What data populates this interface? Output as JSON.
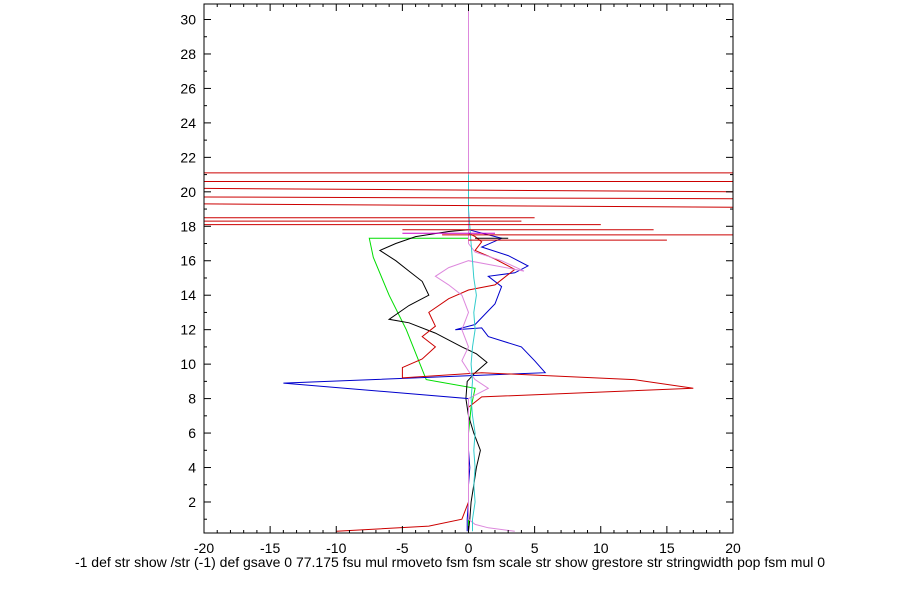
{
  "chart_data": {
    "type": "line",
    "title": "",
    "xlabel": "-1 def str show /str (-1) def gsave 0 77.175 fsu mul rmoveto fsm fsm scale str show grestore str stringwidth pop fsm mul 0",
    "ylabel": "",
    "xlim": [
      -20,
      20
    ],
    "ylim": [
      0.2,
      30.9
    ],
    "xticks": [
      -20,
      -15,
      -10,
      -5,
      0,
      5,
      10,
      15,
      20
    ],
    "xtick_labels": [
      "-20",
      "-15",
      "-10",
      "-5",
      "0",
      "5",
      "10",
      "15",
      "20"
    ],
    "yticks": [
      2,
      4,
      6,
      8,
      10,
      12,
      14,
      16,
      18,
      20,
      22,
      24,
      26,
      28,
      30
    ],
    "ytick_labels": [
      "2",
      "4",
      "6",
      "8",
      "10",
      "12",
      "14",
      "16",
      "18",
      "20",
      "22",
      "24",
      "26",
      "28",
      "30"
    ],
    "grid": false,
    "legend": "none",
    "colors": {
      "green": "#00dd00",
      "black": "#000000",
      "blue": "#0000cc",
      "red": "#cc0000",
      "violet": "#dd88dd",
      "cyan": "#33cccc",
      "magenta": "#cc00cc"
    },
    "series": [
      {
        "color": "green",
        "points": [
          [
            0,
            0.3
          ],
          [
            0,
            2
          ],
          [
            0,
            4
          ],
          [
            0,
            6
          ],
          [
            0.2,
            7.5
          ],
          [
            0.5,
            8.6
          ],
          [
            -3.2,
            9.1
          ],
          [
            -4.7,
            12
          ],
          [
            -6,
            14
          ],
          [
            -7.2,
            16.2
          ],
          [
            -7.5,
            17.3
          ],
          [
            0,
            17.3
          ]
        ]
      },
      {
        "color": "black",
        "points": [
          [
            0,
            0.3
          ],
          [
            0.1,
            1
          ],
          [
            0.2,
            2
          ],
          [
            0.4,
            3
          ],
          [
            0.6,
            4
          ],
          [
            0.9,
            5
          ],
          [
            0.4,
            6
          ],
          [
            0,
            7
          ],
          [
            -0.2,
            8
          ],
          [
            -0.1,
            9
          ],
          [
            0.5,
            9.5
          ],
          [
            1.4,
            10.1
          ],
          [
            0.6,
            10.6
          ],
          [
            -0.5,
            11
          ],
          [
            -2.5,
            11.8
          ],
          [
            -4.5,
            12.4
          ],
          [
            -6,
            12.6
          ],
          [
            -4.5,
            13.4
          ],
          [
            -3,
            14
          ],
          [
            -3.5,
            14.8
          ],
          [
            -4.5,
            15.4
          ],
          [
            -5.5,
            16
          ],
          [
            -6.7,
            16.6
          ],
          [
            -5.5,
            17
          ],
          [
            -4,
            17.4
          ],
          [
            -1.5,
            17.7
          ],
          [
            0,
            17.8
          ]
        ]
      },
      {
        "color": "blue",
        "points": [
          [
            -0.1,
            0.3
          ],
          [
            -0.1,
            1
          ],
          [
            0,
            2
          ],
          [
            0,
            3
          ],
          [
            0.1,
            4
          ],
          [
            0,
            5
          ],
          [
            0,
            6
          ],
          [
            0,
            7
          ],
          [
            0,
            8
          ],
          [
            -14,
            8.9
          ],
          [
            -4,
            9.2
          ],
          [
            -1,
            9.3
          ],
          [
            5.8,
            9.5
          ],
          [
            5,
            10.2
          ],
          [
            4,
            11
          ],
          [
            1.5,
            11.6
          ],
          [
            1,
            12.1
          ],
          [
            -1,
            12
          ],
          [
            0.5,
            12.3
          ],
          [
            2,
            13.5
          ],
          [
            2.5,
            14.5
          ],
          [
            1.5,
            15.1
          ],
          [
            3.5,
            15.3
          ],
          [
            4.5,
            15.7
          ],
          [
            3,
            16.3
          ],
          [
            1,
            16.8
          ],
          [
            2.5,
            17.3
          ],
          [
            0,
            17.8
          ]
        ]
      },
      {
        "color": "red",
        "points": [
          [
            -10,
            0.3
          ],
          [
            -3,
            0.6
          ],
          [
            -0.5,
            1
          ],
          [
            0,
            2
          ],
          [
            0,
            4
          ],
          [
            0,
            6
          ],
          [
            0,
            7.5
          ],
          [
            1,
            8.1
          ],
          [
            17,
            8.6
          ],
          [
            12.5,
            9.1
          ],
          [
            1,
            9.5
          ],
          [
            -5,
            9.2
          ],
          [
            -5,
            9.8
          ],
          [
            -3.5,
            10.3
          ],
          [
            -2.5,
            11
          ],
          [
            -3.5,
            11.6
          ],
          [
            -2.5,
            12.2
          ],
          [
            -3,
            13
          ],
          [
            -1.5,
            13.8
          ],
          [
            0,
            14.3
          ],
          [
            2,
            14.6
          ],
          [
            2.5,
            14.9
          ],
          [
            3.5,
            15.5
          ],
          [
            2,
            16.1
          ],
          [
            0.5,
            16.6
          ],
          [
            1,
            17.1
          ],
          [
            0.5,
            17.4
          ],
          [
            0,
            17.6
          ]
        ]
      },
      {
        "color": "violet",
        "points": [
          [
            3.5,
            0.3
          ],
          [
            1.5,
            0.5
          ],
          [
            0.5,
            0.7
          ],
          [
            0,
            1
          ],
          [
            0,
            2
          ],
          [
            0,
            4
          ],
          [
            0,
            6
          ],
          [
            0,
            8
          ],
          [
            1.5,
            8.6
          ],
          [
            0.5,
            9.1
          ],
          [
            0,
            9.6
          ],
          [
            -0.5,
            10.2
          ],
          [
            0,
            11
          ],
          [
            -0.5,
            12
          ],
          [
            0,
            13
          ],
          [
            -0.5,
            14
          ],
          [
            -1.5,
            14.6
          ],
          [
            -2.5,
            15.1
          ],
          [
            -1.5,
            15.6
          ],
          [
            0,
            16
          ],
          [
            4.2,
            15.4
          ],
          [
            2.5,
            16
          ],
          [
            0.5,
            16.5
          ],
          [
            0,
            17
          ],
          [
            0,
            18
          ],
          [
            0,
            20
          ],
          [
            0,
            22
          ],
          [
            0,
            24
          ],
          [
            0,
            26
          ],
          [
            0,
            28
          ],
          [
            0,
            30.9
          ]
        ]
      },
      {
        "color": "cyan",
        "points": [
          [
            0.3,
            0.3
          ],
          [
            0.3,
            1
          ],
          [
            0.5,
            2
          ],
          [
            0.4,
            3
          ],
          [
            0.5,
            4
          ],
          [
            0.4,
            5
          ],
          [
            0.5,
            6
          ],
          [
            0.3,
            7
          ],
          [
            0.2,
            8
          ],
          [
            0.3,
            9
          ],
          [
            0.2,
            10
          ],
          [
            0.3,
            11
          ],
          [
            0.5,
            12
          ],
          [
            0.4,
            13
          ],
          [
            0.6,
            14
          ],
          [
            0.4,
            15
          ],
          [
            0.3,
            16
          ],
          [
            0.2,
            17
          ],
          [
            0.1,
            18
          ],
          [
            0,
            19
          ],
          [
            0,
            20
          ],
          [
            0,
            21
          ]
        ]
      },
      {
        "color": "red",
        "points": [
          [
            -20,
            30.9
          ],
          [
            -5,
            30.9
          ]
        ]
      },
      {
        "color": "red",
        "points": [
          [
            -20,
            21.1
          ],
          [
            20,
            21.1
          ]
        ]
      },
      {
        "color": "red",
        "points": [
          [
            -20,
            20.6
          ],
          [
            20,
            20.6
          ]
        ]
      },
      {
        "color": "red",
        "points": [
          [
            -20,
            20.2
          ],
          [
            20,
            20
          ]
        ]
      },
      {
        "color": "red",
        "points": [
          [
            -20,
            19.7
          ],
          [
            20,
            19.6
          ]
        ]
      },
      {
        "color": "red",
        "points": [
          [
            -20,
            19.3
          ],
          [
            20,
            19.1
          ]
        ]
      },
      {
        "color": "red",
        "points": [
          [
            -20,
            18.5
          ],
          [
            5,
            18.5
          ]
        ]
      },
      {
        "color": "red",
        "points": [
          [
            -20,
            18.3
          ],
          [
            4,
            18.3
          ]
        ]
      },
      {
        "color": "red",
        "points": [
          [
            -20,
            18.1
          ],
          [
            10,
            18.1
          ]
        ]
      },
      {
        "color": "red",
        "points": [
          [
            -5,
            17.8
          ],
          [
            14,
            17.8
          ]
        ]
      },
      {
        "color": "red",
        "points": [
          [
            -2,
            17.5
          ],
          [
            20,
            17.5
          ]
        ]
      },
      {
        "color": "red",
        "points": [
          [
            0,
            17.2
          ],
          [
            15,
            17.2
          ]
        ]
      },
      {
        "color": "magenta",
        "points": [
          [
            -5,
            17.6
          ],
          [
            2,
            17.6
          ]
        ]
      },
      {
        "color": "black",
        "points": [
          [
            0.5,
            17.3
          ],
          [
            3,
            17.3
          ]
        ]
      }
    ]
  }
}
